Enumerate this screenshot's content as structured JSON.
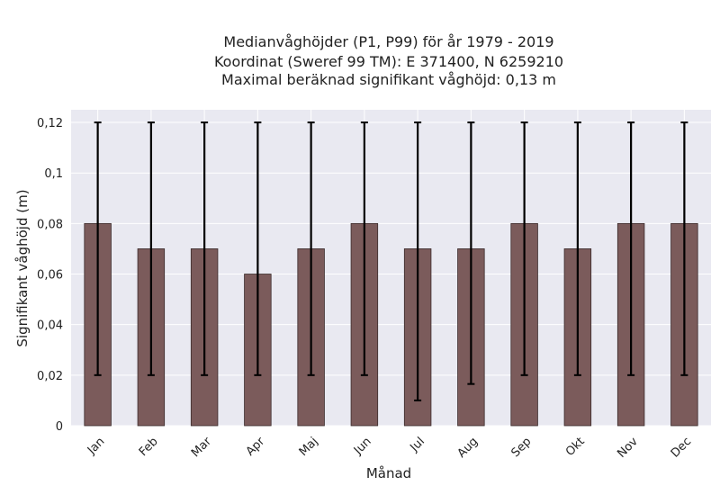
{
  "chart_data": {
    "type": "bar",
    "title_lines": [
      "Medianvåghöjder (P1, P99) för år 1979 - 2019",
      "Koordinat (Sweref 99 TM): E 371400, N 6259210",
      "Maximal beräknad signifikant våghöjd: 0,13 m"
    ],
    "xlabel": "Månad",
    "ylabel": "Signifikant våghöjd (m)",
    "categories": [
      "Jan",
      "Feb",
      "Mar",
      "Apr",
      "Maj",
      "Jun",
      "Jul",
      "Aug",
      "Sep",
      "Okt",
      "Nov",
      "Dec"
    ],
    "series": [
      {
        "values": [
          0.08,
          0.07,
          0.07,
          0.06,
          0.07,
          0.08,
          0.07,
          0.07,
          0.08,
          0.07,
          0.08,
          0.08
        ],
        "p1": [
          0.02,
          0.02,
          0.02,
          0.02,
          0.02,
          0.02,
          0.01,
          0.0165,
          0.02,
          0.02,
          0.02,
          0.02
        ],
        "p99": [
          0.12,
          0.12,
          0.12,
          0.12,
          0.12,
          0.12,
          0.12,
          0.12,
          0.12,
          0.12,
          0.12,
          0.12
        ]
      }
    ],
    "ylim": [
      0,
      0.125
    ],
    "yticks": [
      0,
      0.02,
      0.04,
      0.06,
      0.08,
      0.1,
      0.12
    ],
    "ytick_labels": [
      "0",
      "0,02",
      "0,04",
      "0,06",
      "0,08",
      "0,1",
      "0,12"
    ],
    "grid": true,
    "colors": {
      "bar": "#7b5b5b",
      "bar_edge": "#3a2a2a",
      "error_bar": "#000000",
      "plot_bg": "#e9e9f1",
      "grid": "#ffffff"
    }
  }
}
